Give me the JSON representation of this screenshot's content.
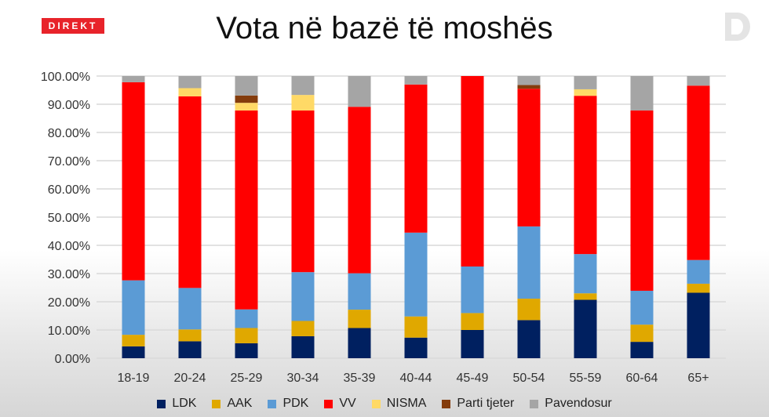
{
  "badge": "DIREKT",
  "logo_text": "D",
  "chart_data": {
    "type": "bar",
    "stacked": true,
    "title": "Vota në bazë të moshës",
    "categories": [
      "18-19",
      "20-24",
      "25-29",
      "30-34",
      "35-39",
      "40-44",
      "45-49",
      "50-54",
      "55-59",
      "60-64",
      "65+"
    ],
    "ylim": [
      0,
      100
    ],
    "yticks": [
      "0.00%",
      "10.00%",
      "20.00%",
      "30.00%",
      "40.00%",
      "50.00%",
      "60.00%",
      "70.00%",
      "80.00%",
      "90.00%",
      "100.00%"
    ],
    "grid": true,
    "legend_position": "bottom",
    "series": [
      {
        "name": "LDK",
        "color": "#002060",
        "values": [
          4.2,
          6.0,
          5.3,
          7.8,
          10.7,
          7.3,
          10.0,
          13.5,
          20.7,
          5.8,
          23.2
        ]
      },
      {
        "name": "AAK",
        "color": "#e0a800",
        "values": [
          4.1,
          4.2,
          5.4,
          5.4,
          6.5,
          7.5,
          6.0,
          7.6,
          2.3,
          6.1,
          3.2
        ]
      },
      {
        "name": "PDK",
        "color": "#5b9bd5",
        "values": [
          19.3,
          14.7,
          6.6,
          17.3,
          12.9,
          29.7,
          16.5,
          25.6,
          13.9,
          12.0,
          8.4
        ]
      },
      {
        "name": "VV",
        "color": "#ff0000",
        "values": [
          70.2,
          67.9,
          70.5,
          57.3,
          59.0,
          52.5,
          67.5,
          48.8,
          56.1,
          63.9,
          61.8
        ]
      },
      {
        "name": "NISMA",
        "color": "#ffd966",
        "values": [
          0,
          2.9,
          2.7,
          5.5,
          0,
          0,
          0,
          0,
          2.3,
          0,
          0
        ]
      },
      {
        "name": "Parti tjeter",
        "color": "#843c0c",
        "values": [
          0,
          0,
          2.6,
          0,
          0,
          0,
          0,
          1.3,
          0,
          0,
          0
        ]
      },
      {
        "name": "Pavendosur",
        "color": "#a5a5a5",
        "values": [
          2.2,
          4.3,
          6.9,
          6.7,
          10.9,
          3.0,
          0,
          3.2,
          4.7,
          12.2,
          3.4
        ]
      }
    ]
  }
}
